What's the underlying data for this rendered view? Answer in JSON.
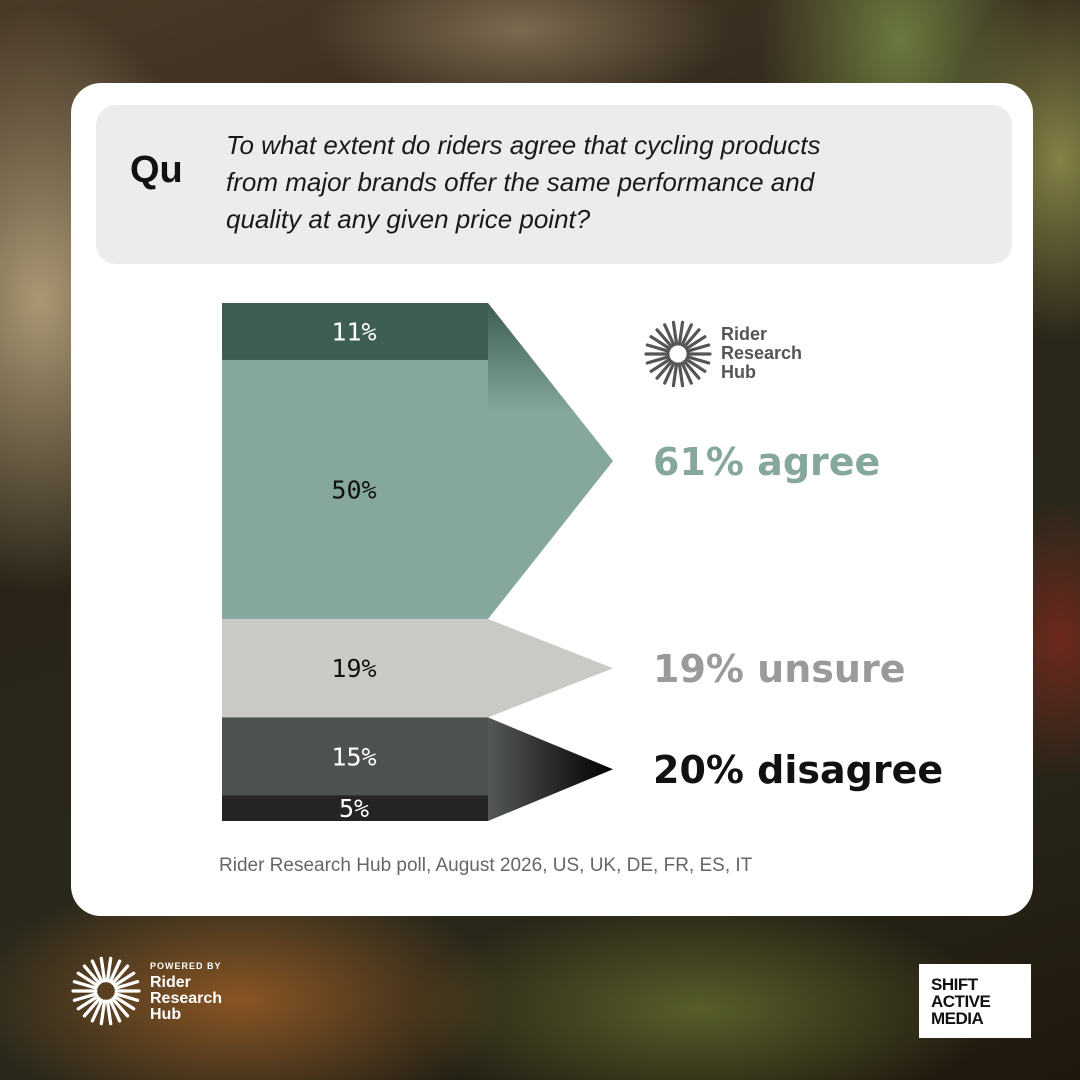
{
  "question": {
    "label": "Qu",
    "line1": "To what extent do riders agree that cycling  products",
    "line2": "from major brands offer the same performance and",
    "line3": "quality at any given price point?"
  },
  "brand": {
    "line1": "Rider",
    "line2": "Research",
    "line3": "Hub"
  },
  "source": "Rider Research Hub poll, August 2026, US, UK, DE, FR, ES, IT",
  "footer": {
    "powered_by": "POWERED BY",
    "line1": "Rider",
    "line2": "Research",
    "line3": "Hub",
    "partner_line1": "SHIFT",
    "partner_line2": "ACTIVE",
    "partner_line3": "MEDIA"
  },
  "chart_data": {
    "type": "bar",
    "stacked": true,
    "orientation": "vertical",
    "segments": [
      {
        "label": "11%",
        "value": 11,
        "color": "#3e5e52"
      },
      {
        "label": "50%",
        "value": 50,
        "color": "#86a89c"
      },
      {
        "label": "19%",
        "value": 19,
        "color": "#c9c9c5"
      },
      {
        "label": "15%",
        "value": 15,
        "color": "#4e524e"
      },
      {
        "label": "5%",
        "value": 5,
        "color": "#242424"
      }
    ],
    "groups": [
      {
        "label": "61% agree",
        "value": 61,
        "color": "#86a89c"
      },
      {
        "label": "19% unsure",
        "value": 19,
        "color": "#9a9a9a"
      },
      {
        "label": "20% disagree",
        "value": 20,
        "color": "#111111"
      }
    ]
  }
}
